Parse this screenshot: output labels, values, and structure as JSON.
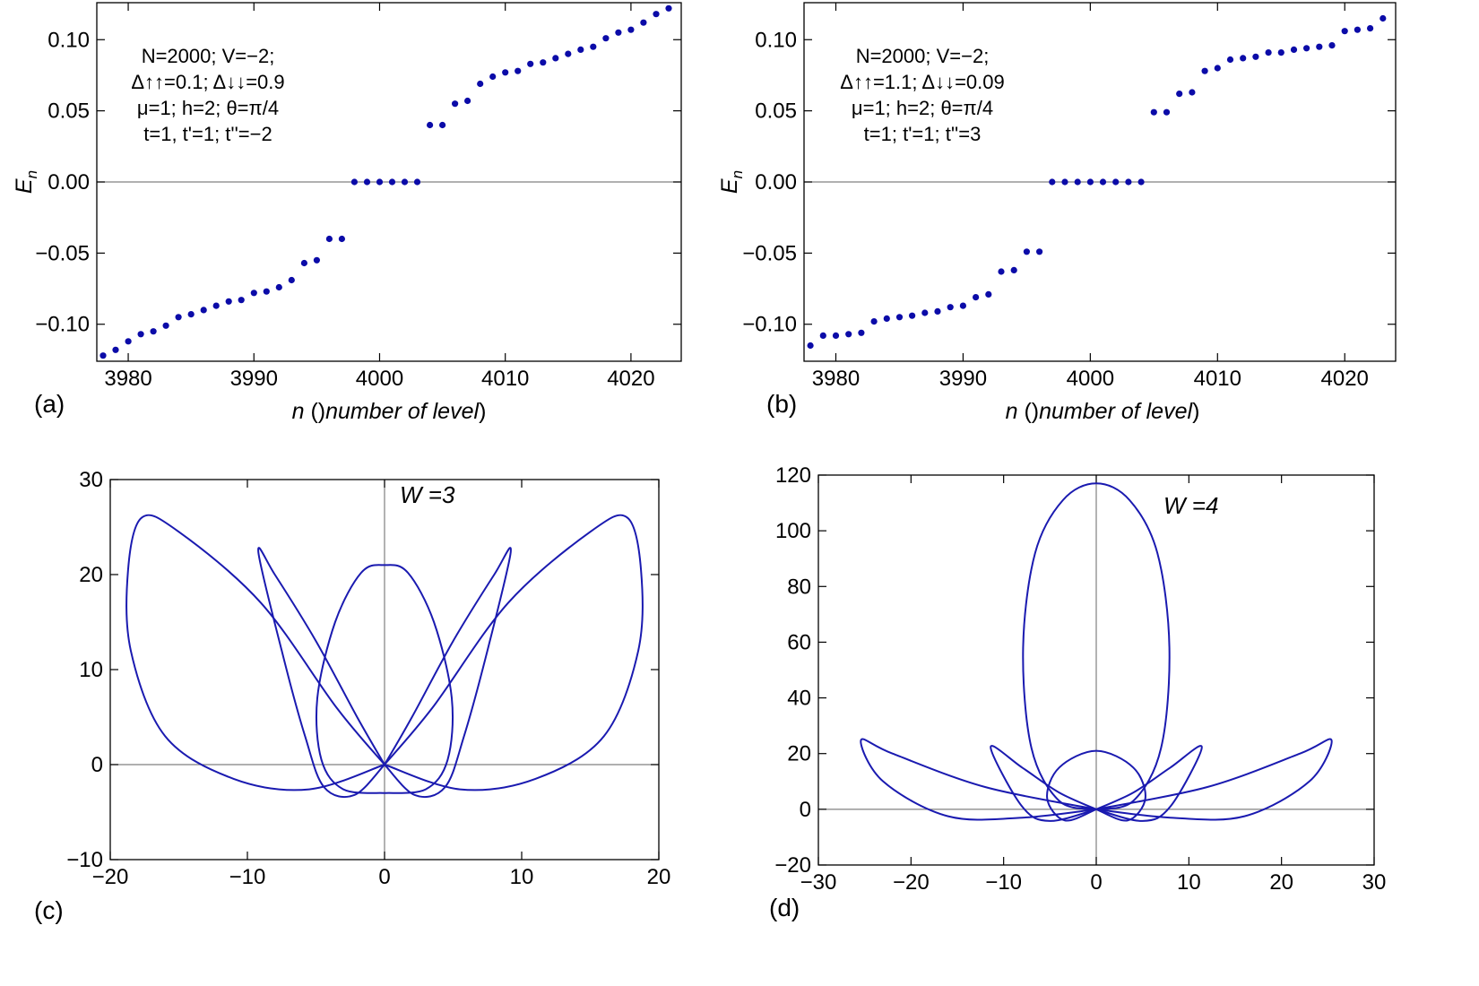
{
  "colors": {
    "marker": "#0b0ba8",
    "curve": "#1a1ab0",
    "axis": "#000000",
    "zeroline": "#808080"
  },
  "chart_data": [
    {
      "id": "a",
      "type": "scatter",
      "panel_label": "(a)",
      "xlabel_var": "n",
      "xlabel_rest": " (number of level)",
      "ylabel": "E",
      "ylabel_sub": "n",
      "xlim": [
        3977.5,
        4024
      ],
      "ylim": [
        -0.126,
        0.126
      ],
      "xticks": [
        3980,
        3990,
        4000,
        4010,
        4020
      ],
      "xtick_labels": [
        "3980",
        "3990",
        "4000",
        "4010",
        "4020"
      ],
      "yticks": [
        -0.1,
        -0.05,
        0,
        0.05,
        0.1
      ],
      "ytick_labels": [
        "−0.10",
        "−0.05",
        "0.00",
        "0.05",
        "0.10"
      ],
      "annotation": [
        "N=2000; V=−2;",
        "Δ↑↑=0.1; Δ↓↓=0.9",
        "μ=1; h=2; θ=π/4",
        "t=1, t'=1; t''=−2"
      ],
      "x": [
        3978,
        3979,
        3980,
        3981,
        3982,
        3983,
        3984,
        3985,
        3986,
        3987,
        3988,
        3989,
        3990,
        3991,
        3992,
        3993,
        3994,
        3995,
        3996,
        3997,
        3998,
        3999,
        4000,
        4001,
        4002,
        4003,
        4004,
        4005,
        4006,
        4007,
        4008,
        4009,
        4010,
        4011,
        4012,
        4013,
        4014,
        4015,
        4016,
        4017,
        4018,
        4019,
        4020,
        4021,
        4022,
        4023
      ],
      "y": [
        -0.122,
        -0.118,
        -0.112,
        -0.107,
        -0.105,
        -0.101,
        -0.095,
        -0.093,
        -0.09,
        -0.087,
        -0.084,
        -0.083,
        -0.078,
        -0.077,
        -0.074,
        -0.069,
        -0.057,
        -0.055,
        -0.04,
        -0.04,
        0,
        0,
        0,
        0,
        0,
        0,
        0.04,
        0.04,
        0.055,
        0.057,
        0.069,
        0.074,
        0.077,
        0.078,
        0.083,
        0.084,
        0.087,
        0.09,
        0.093,
        0.095,
        0.101,
        0.105,
        0.107,
        0.112,
        0.118,
        0.122
      ]
    },
    {
      "id": "b",
      "type": "scatter",
      "panel_label": "(b)",
      "xlabel_var": "n",
      "xlabel_rest": " (number of level)",
      "ylabel": "E",
      "ylabel_sub": "n",
      "xlim": [
        3977.5,
        4024
      ],
      "ylim": [
        -0.126,
        0.126
      ],
      "xticks": [
        3980,
        3990,
        4000,
        4010,
        4020
      ],
      "xtick_labels": [
        "3980",
        "3990",
        "4000",
        "4010",
        "4020"
      ],
      "yticks": [
        -0.1,
        -0.05,
        0,
        0.05,
        0.1
      ],
      "ytick_labels": [
        "−0.10",
        "−0.05",
        "0.00",
        "0.05",
        "0.10"
      ],
      "annotation": [
        "N=2000; V=−2;",
        "Δ↑↑=1.1; Δ↓↓=0.09",
        "μ=1; h=2; θ=π/4",
        "t=1; t'=1; t''=3"
      ],
      "x": [
        3978,
        3979,
        3980,
        3981,
        3982,
        3983,
        3984,
        3985,
        3986,
        3987,
        3988,
        3989,
        3990,
        3991,
        3992,
        3993,
        3994,
        3995,
        3996,
        3997,
        3998,
        3999,
        4000,
        4001,
        4002,
        4003,
        4004,
        4005,
        4006,
        4007,
        4008,
        4009,
        4010,
        4011,
        4012,
        4013,
        4014,
        4015,
        4016,
        4017,
        4018,
        4019,
        4020,
        4021,
        4022,
        4023
      ],
      "y": [
        -0.115,
        -0.108,
        -0.108,
        -0.107,
        -0.106,
        -0.098,
        -0.096,
        -0.095,
        -0.094,
        -0.092,
        -0.091,
        -0.088,
        -0.087,
        -0.081,
        -0.079,
        -0.063,
        -0.062,
        -0.049,
        -0.049,
        0,
        0,
        0,
        0,
        0,
        0,
        0,
        0,
        0.049,
        0.049,
        0.062,
        0.063,
        0.078,
        0.08,
        0.086,
        0.087,
        0.088,
        0.091,
        0.091,
        0.093,
        0.094,
        0.095,
        0.096,
        0.106,
        0.107,
        0.108,
        0.115
      ]
    },
    {
      "id": "c",
      "type": "line",
      "panel_label": "(c)",
      "winding_label": "W =3",
      "xlim": [
        -20,
        20
      ],
      "ylim": [
        -10,
        30
      ],
      "xticks": [
        -20,
        -10,
        0,
        10,
        20
      ],
      "xtick_labels": [
        "−20",
        "−10",
        "0",
        "10",
        "20"
      ],
      "yticks": [
        -10,
        0,
        10,
        20,
        30
      ],
      "ytick_labels": [
        "−10",
        "0",
        "10",
        "20",
        "30"
      ],
      "curves": [
        {
          "name": "outer-left-lobe",
          "points": [
            [
              0,
              0
            ],
            [
              -5.5,
              -2.6
            ],
            [
              -11,
              -1.5
            ],
            [
              -16,
              3
            ],
            [
              -18.5,
              12
            ],
            [
              -18.7,
              20.5
            ],
            [
              -17.7,
              26
            ],
            [
              -15,
              24.5
            ],
            [
              -9,
              17
            ],
            [
              -3.5,
              6
            ],
            [
              0,
              0
            ]
          ]
        },
        {
          "name": "outer-right-lobe",
          "points": [
            [
              0,
              0
            ],
            [
              5.5,
              -2.6
            ],
            [
              11,
              -1.5
            ],
            [
              16,
              3
            ],
            [
              18.5,
              12
            ],
            [
              18.7,
              20.5
            ],
            [
              17.7,
              26
            ],
            [
              15,
              24.5
            ],
            [
              9,
              17
            ],
            [
              3.5,
              6
            ],
            [
              0,
              0
            ]
          ]
        },
        {
          "name": "inner-left-lobe",
          "points": [
            [
              0,
              0
            ],
            [
              -2.2,
              -3.2
            ],
            [
              -4.4,
              -2.4
            ],
            [
              -5.8,
              3
            ],
            [
              -7.5,
              12
            ],
            [
              -9.2,
              22.4
            ],
            [
              -8,
              20
            ],
            [
              -5,
              13
            ],
            [
              -2,
              5
            ],
            [
              0,
              0
            ]
          ]
        },
        {
          "name": "inner-right-lobe",
          "points": [
            [
              0,
              0
            ],
            [
              2.2,
              -3.2
            ],
            [
              4.4,
              -2.4
            ],
            [
              5.8,
              3
            ],
            [
              7.5,
              12
            ],
            [
              9.2,
              22.4
            ],
            [
              8,
              20
            ],
            [
              5,
              13
            ],
            [
              2,
              5
            ],
            [
              0,
              0
            ]
          ]
        },
        {
          "name": "central-loop",
          "points": [
            [
              0,
              -3
            ],
            [
              3,
              -2.6
            ],
            [
              4.6,
              0.5
            ],
            [
              4.9,
              7
            ],
            [
              3.6,
              15
            ],
            [
              1.7,
              20.2
            ],
            [
              0,
              21
            ],
            [
              -1.7,
              20.2
            ],
            [
              -3.6,
              15
            ],
            [
              -4.9,
              7
            ],
            [
              -4.6,
              0.5
            ],
            [
              -3,
              -2.6
            ],
            [
              0,
              -3
            ]
          ]
        }
      ]
    },
    {
      "id": "d",
      "type": "line",
      "panel_label": "(d)",
      "winding_label": "W =4",
      "xlim": [
        -30,
        30
      ],
      "ylim": [
        -20,
        120
      ],
      "xticks": [
        -30,
        -20,
        -10,
        0,
        10,
        20,
        30
      ],
      "xtick_labels": [
        "−30",
        "−20",
        "−10",
        "0",
        "10",
        "20",
        "30"
      ],
      "yticks": [
        -20,
        0,
        20,
        40,
        60,
        80,
        100,
        120
      ],
      "ytick_labels": [
        "−20",
        "0",
        "20",
        "40",
        "60",
        "80",
        "100",
        "120"
      ],
      "curves": [
        {
          "name": "large-loop",
          "points": [
            [
              0,
              0
            ],
            [
              4,
              3
            ],
            [
              7,
              22
            ],
            [
              7.9,
              58
            ],
            [
              6.6,
              92
            ],
            [
              3.6,
              111
            ],
            [
              0,
              117
            ],
            [
              -3.6,
              111
            ],
            [
              -6.6,
              92
            ],
            [
              -7.9,
              58
            ],
            [
              -7,
              22
            ],
            [
              -4,
              3
            ],
            [
              0,
              0
            ]
          ]
        },
        {
          "name": "small-loop",
          "points": [
            [
              0,
              0
            ],
            [
              -3.4,
              -4
            ],
            [
              -5.3,
              4
            ],
            [
              -4,
              15
            ],
            [
              0,
              21
            ],
            [
              4,
              15
            ],
            [
              5.3,
              4
            ],
            [
              3.4,
              -4
            ],
            [
              0,
              0
            ]
          ]
        },
        {
          "name": "outer-left-lobe",
          "points": [
            [
              0,
              0
            ],
            [
              -8,
              -3
            ],
            [
              -16,
              -2.5
            ],
            [
              -23,
              10
            ],
            [
              -25.4,
              24.8
            ],
            [
              -22,
              20
            ],
            [
              -12,
              8
            ],
            [
              0,
              0
            ]
          ]
        },
        {
          "name": "outer-right-lobe",
          "points": [
            [
              0,
              0
            ],
            [
              8,
              -3
            ],
            [
              16,
              -2.5
            ],
            [
              23,
              10
            ],
            [
              25.4,
              24.8
            ],
            [
              22,
              20
            ],
            [
              12,
              8
            ],
            [
              0,
              0
            ]
          ]
        },
        {
          "name": "inner-left-lobe",
          "points": [
            [
              0,
              0
            ],
            [
              -5,
              -4.2
            ],
            [
              -8,
              1
            ],
            [
              -11.4,
              22.3
            ],
            [
              -8,
              15
            ],
            [
              -4,
              6
            ],
            [
              0,
              0
            ]
          ]
        },
        {
          "name": "inner-right-lobe",
          "points": [
            [
              0,
              0
            ],
            [
              5,
              -4.2
            ],
            [
              8,
              1
            ],
            [
              11.4,
              22.3
            ],
            [
              8,
              15
            ],
            [
              4,
              6
            ],
            [
              0,
              0
            ]
          ]
        }
      ]
    }
  ]
}
